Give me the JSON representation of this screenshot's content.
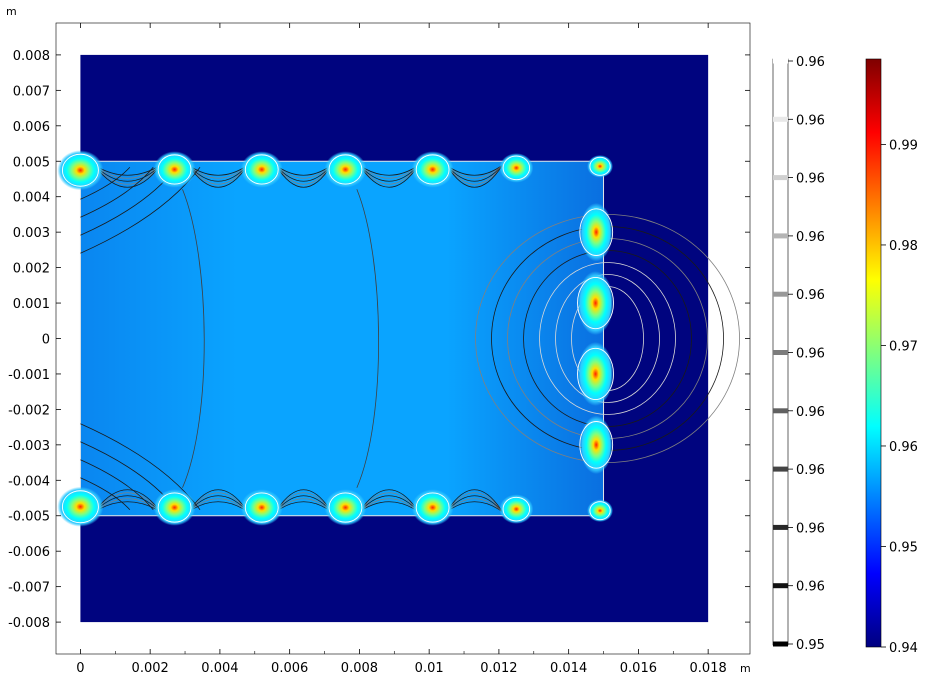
{
  "chart_data": {
    "type": "heatmap",
    "title": "",
    "x_unit": "m",
    "y_unit": "m",
    "xlim": [
      -0.0007,
      0.0192
    ],
    "ylim": [
      -0.0089,
      0.0089
    ],
    "x_ticks": [
      {
        "value": 0,
        "label": "0"
      },
      {
        "value": 0.002,
        "label": "0.002"
      },
      {
        "value": 0.004,
        "label": "0.004"
      },
      {
        "value": 0.006,
        "label": "0.006"
      },
      {
        "value": 0.008,
        "label": "0.008"
      },
      {
        "value": 0.01,
        "label": "0.01"
      },
      {
        "value": 0.012,
        "label": "0.012"
      },
      {
        "value": 0.014,
        "label": "0.014"
      },
      {
        "value": 0.016,
        "label": "0.016"
      },
      {
        "value": 0.018,
        "label": "0.018"
      }
    ],
    "y_ticks": [
      {
        "value": 0.008,
        "label": "0.008"
      },
      {
        "value": 0.007,
        "label": "0.007"
      },
      {
        "value": 0.006,
        "label": "0.006"
      },
      {
        "value": 0.005,
        "label": "0.005"
      },
      {
        "value": 0.004,
        "label": "0.004"
      },
      {
        "value": 0.003,
        "label": "0.003"
      },
      {
        "value": 0.002,
        "label": "0.002"
      },
      {
        "value": 0.001,
        "label": "0.001"
      },
      {
        "value": 0,
        "label": "0"
      },
      {
        "value": -0.001,
        "label": "-0.001"
      },
      {
        "value": -0.002,
        "label": "-0.002"
      },
      {
        "value": -0.003,
        "label": "-0.003"
      },
      {
        "value": -0.004,
        "label": "-0.004"
      },
      {
        "value": -0.005,
        "label": "-0.005"
      },
      {
        "value": -0.006,
        "label": "-0.006"
      },
      {
        "value": -0.007,
        "label": "-0.007"
      },
      {
        "value": -0.008,
        "label": "-0.008"
      }
    ],
    "outer_domain": {
      "x": [
        0,
        0.018
      ],
      "y": [
        -0.008,
        0.008
      ]
    },
    "inner_domain": {
      "x": [
        0,
        0.015
      ],
      "y": [
        -0.005,
        0.005
      ]
    },
    "hotspots": [
      {
        "x": 0.0,
        "y": 0.005,
        "level": 0.99
      },
      {
        "x": 0.0027,
        "y": 0.005,
        "level": 0.985
      },
      {
        "x": 0.0052,
        "y": 0.005,
        "level": 0.985
      },
      {
        "x": 0.0076,
        "y": 0.005,
        "level": 0.985
      },
      {
        "x": 0.0101,
        "y": 0.005,
        "level": 0.985
      },
      {
        "x": 0.0125,
        "y": 0.005,
        "level": 0.975
      },
      {
        "x": 0.0149,
        "y": 0.005,
        "level": 0.965
      },
      {
        "x": 0.015,
        "y": 0.003,
        "level": 0.985
      },
      {
        "x": 0.015,
        "y": 0.001,
        "level": 0.99
      },
      {
        "x": 0.015,
        "y": -0.001,
        "level": 0.99
      },
      {
        "x": 0.015,
        "y": -0.003,
        "level": 0.985
      },
      {
        "x": 0.0,
        "y": -0.005,
        "level": 0.99
      },
      {
        "x": 0.0027,
        "y": -0.005,
        "level": 0.985
      },
      {
        "x": 0.0052,
        "y": -0.005,
        "level": 0.985
      },
      {
        "x": 0.0076,
        "y": -0.005,
        "level": 0.985
      },
      {
        "x": 0.0101,
        "y": -0.005,
        "level": 0.985
      },
      {
        "x": 0.0125,
        "y": -0.005,
        "level": 0.975
      },
      {
        "x": 0.0149,
        "y": -0.005,
        "level": 0.965
      }
    ],
    "contour_legend": {
      "labels": [
        "0.96",
        "0.96",
        "0.96",
        "0.96",
        "0.96",
        "0.96",
        "0.96",
        "0.96",
        "0.96",
        "0.96",
        "0.95"
      ],
      "colors": [
        "#ffffff",
        "#e8e8e8",
        "#d0d0d0",
        "#b4b4b4",
        "#989898",
        "#7c7c7c",
        "#606060",
        "#444444",
        "#282828",
        "#121212",
        "#000000"
      ]
    },
    "color_scale": {
      "range": [
        0.94,
        0.9985
      ],
      "ticks": [
        {
          "value": 0.99,
          "label": "0.99"
        },
        {
          "value": 0.98,
          "label": "0.98"
        },
        {
          "value": 0.97,
          "label": "0.97"
        },
        {
          "value": 0.96,
          "label": "0.96"
        },
        {
          "value": 0.95,
          "label": "0.95"
        },
        {
          "value": 0.94,
          "label": "0.94"
        }
      ],
      "colormap": "rainbow",
      "stops": [
        "#00007f",
        "#0000ff",
        "#007fff",
        "#00ffff",
        "#7fff7f",
        "#ffff00",
        "#ff7f00",
        "#ff0000",
        "#7f0000"
      ]
    },
    "grid": false,
    "legend_placement": "right"
  }
}
